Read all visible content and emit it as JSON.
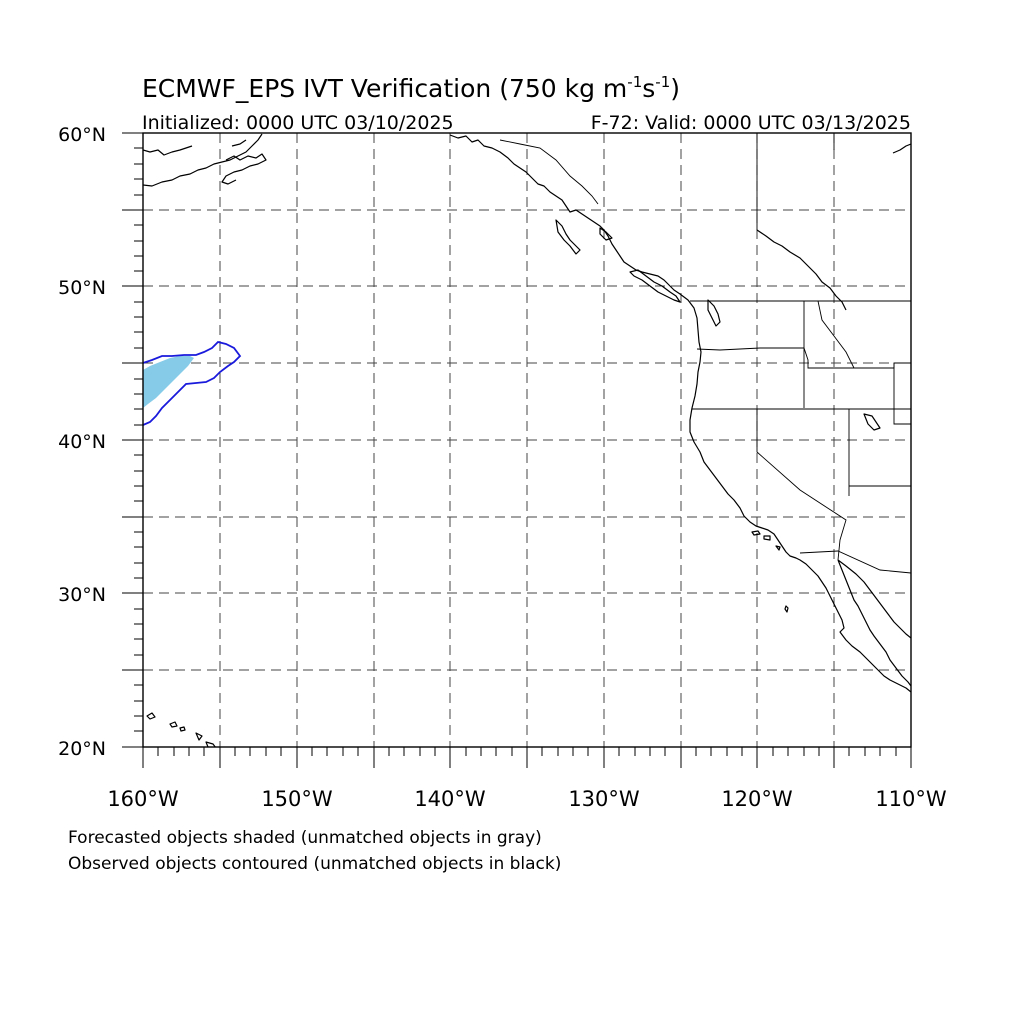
{
  "title": {
    "main": "ECMWF_EPS IVT Verification (750 kg m",
    "sup1": "-1",
    "mid": "s",
    "sup2": "-1",
    "end": ")"
  },
  "init_text": "Initialized: 0000 UTC 03/10/2025",
  "valid_text": "F-72: Valid: 0000 UTC 03/13/2025",
  "lat_labels": [
    "60°N",
    "50°N",
    "40°N",
    "30°N",
    "20°N"
  ],
  "lon_labels": [
    "160°W",
    "150°W",
    "140°W",
    "130°W",
    "120°W",
    "110°W"
  ],
  "notes": [
    "Forecasted objects shaded (unmatched objects in gray)",
    "Observed objects contoured (unmatched objects in black)"
  ],
  "map": {
    "lon_range": [
      -160,
      -110
    ],
    "lat_range": [
      20,
      60
    ],
    "grid_spacing_deg": 5,
    "forecast_fill_color": "#86cbe8",
    "observed_contour_color": "#1a1adc"
  }
}
